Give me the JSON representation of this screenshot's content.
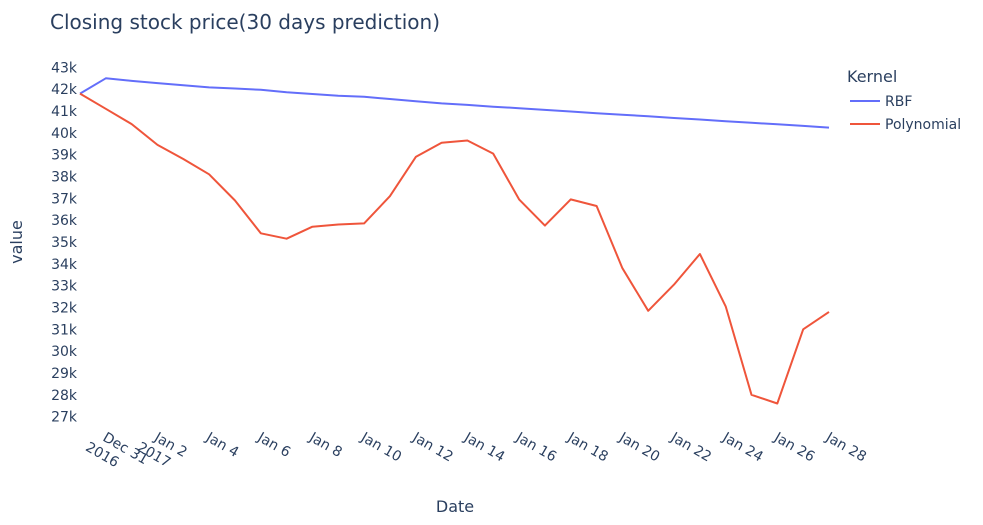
{
  "chart_data": {
    "type": "line",
    "title": "Closing stock price(30 days prediction)",
    "xlabel": "Date",
    "ylabel": "value",
    "x": [
      "2016-12-30",
      "2016-12-31",
      "2017-01-01",
      "2017-01-02",
      "2017-01-03",
      "2017-01-04",
      "2017-01-05",
      "2017-01-06",
      "2017-01-07",
      "2017-01-08",
      "2017-01-09",
      "2017-01-10",
      "2017-01-11",
      "2017-01-12",
      "2017-01-13",
      "2017-01-14",
      "2017-01-15",
      "2017-01-16",
      "2017-01-17",
      "2017-01-18",
      "2017-01-19",
      "2017-01-20",
      "2017-01-21",
      "2017-01-22",
      "2017-01-23",
      "2017-01-24",
      "2017-01-25",
      "2017-01-26",
      "2017-01-27",
      "2017-01-28"
    ],
    "x_ticks": [
      {
        "date": "2016-12-31",
        "label": "Dec 31",
        "sublabel": "2016"
      },
      {
        "date": "2017-01-02",
        "label": "Jan 2",
        "sublabel": "2017"
      },
      {
        "date": "2017-01-04",
        "label": "Jan 4",
        "sublabel": ""
      },
      {
        "date": "2017-01-06",
        "label": "Jan 6",
        "sublabel": ""
      },
      {
        "date": "2017-01-08",
        "label": "Jan 8",
        "sublabel": ""
      },
      {
        "date": "2017-01-10",
        "label": "Jan 10",
        "sublabel": ""
      },
      {
        "date": "2017-01-12",
        "label": "Jan 12",
        "sublabel": ""
      },
      {
        "date": "2017-01-14",
        "label": "Jan 14",
        "sublabel": ""
      },
      {
        "date": "2017-01-16",
        "label": "Jan 16",
        "sublabel": ""
      },
      {
        "date": "2017-01-18",
        "label": "Jan 18",
        "sublabel": ""
      },
      {
        "date": "2017-01-20",
        "label": "Jan 20",
        "sublabel": ""
      },
      {
        "date": "2017-01-22",
        "label": "Jan 22",
        "sublabel": ""
      },
      {
        "date": "2017-01-24",
        "label": "Jan 24",
        "sublabel": ""
      },
      {
        "date": "2017-01-26",
        "label": "Jan 26",
        "sublabel": ""
      },
      {
        "date": "2017-01-28",
        "label": "Jan 28",
        "sublabel": ""
      }
    ],
    "y_ticks": [
      {
        "value": 27000,
        "label": "27k"
      },
      {
        "value": 28000,
        "label": "28k"
      },
      {
        "value": 29000,
        "label": "29k"
      },
      {
        "value": 30000,
        "label": "30k"
      },
      {
        "value": 31000,
        "label": "31k"
      },
      {
        "value": 32000,
        "label": "32k"
      },
      {
        "value": 33000,
        "label": "33k"
      },
      {
        "value": 34000,
        "label": "34k"
      },
      {
        "value": 35000,
        "label": "35k"
      },
      {
        "value": 36000,
        "label": "36k"
      },
      {
        "value": 37000,
        "label": "37k"
      },
      {
        "value": 38000,
        "label": "38k"
      },
      {
        "value": 39000,
        "label": "39k"
      },
      {
        "value": 40000,
        "label": "40k"
      },
      {
        "value": 41000,
        "label": "41k"
      },
      {
        "value": 42000,
        "label": "42k"
      },
      {
        "value": 43000,
        "label": "43k"
      }
    ],
    "ylim": [
      26800,
      43200
    ],
    "grid": false,
    "legend": {
      "title": "Kernel",
      "position": "top-right"
    },
    "series": [
      {
        "name": "RBF",
        "color": "#636efa",
        "values": [
          41800,
          42500,
          42380,
          42280,
          42180,
          42080,
          42030,
          41970,
          41860,
          41780,
          41700,
          41650,
          41550,
          41450,
          41350,
          41280,
          41200,
          41130,
          41050,
          40980,
          40900,
          40830,
          40760,
          40680,
          40610,
          40530,
          40460,
          40390,
          40320,
          40240
        ]
      },
      {
        "name": "Polynomial",
        "color": "#ef553b",
        "values": [
          41800,
          41100,
          40400,
          39450,
          38800,
          38100,
          36900,
          35400,
          35150,
          35700,
          35800,
          35850,
          37100,
          38900,
          39550,
          39650,
          39050,
          36950,
          35750,
          36950,
          36650,
          33800,
          31850,
          33050,
          34450,
          32050,
          28000,
          27600,
          31000,
          31800
        ]
      }
    ]
  }
}
